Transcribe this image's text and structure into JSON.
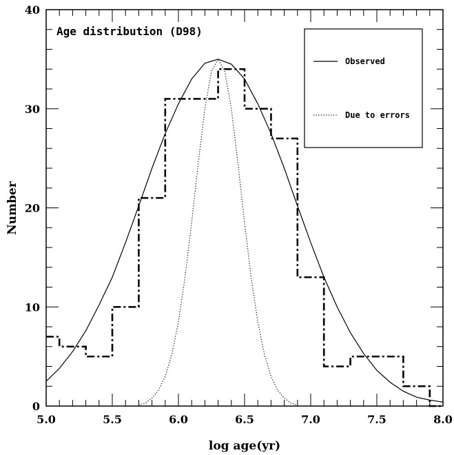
{
  "chart_data": {
    "type": "line",
    "title": "Age distribution (D98)",
    "xlabel": "log age(yr)",
    "ylabel": "Number",
    "xlim": [
      5.0,
      8.0
    ],
    "ylim": [
      0,
      40
    ],
    "x_ticks": [
      "5.0",
      "5.5",
      "6.0",
      "6.5",
      "7.0",
      "7.5",
      "8.0"
    ],
    "y_ticks": [
      "0",
      "10",
      "20",
      "30",
      "40"
    ],
    "x_tick_values": [
      5.0,
      5.5,
      6.0,
      6.5,
      7.0,
      7.5,
      8.0
    ],
    "y_tick_values": [
      0,
      10,
      20,
      30,
      40
    ],
    "grid": false,
    "legend_position": "top-right",
    "legend": [
      {
        "label": "Observed",
        "style": "solid"
      },
      {
        "label": "Due to errors",
        "style": "dotted"
      }
    ],
    "histogram": {
      "style": "dash-dot",
      "bin_edges": [
        5.0,
        5.1,
        5.3,
        5.5,
        5.7,
        5.9,
        6.3,
        6.5,
        6.7,
        6.9,
        7.1,
        7.3,
        7.7,
        7.9,
        8.0
      ],
      "counts": [
        7,
        6,
        5,
        10,
        21,
        31,
        34,
        30,
        27,
        13,
        4,
        5,
        2,
        0
      ]
    },
    "series": [
      {
        "name": "Observed",
        "style": "solid",
        "x": [
          5.0,
          5.1,
          5.2,
          5.3,
          5.4,
          5.5,
          5.6,
          5.7,
          5.8,
          5.9,
          6.0,
          6.1,
          6.2,
          6.3,
          6.4,
          6.5,
          6.6,
          6.7,
          6.8,
          6.9,
          7.0,
          7.1,
          7.2,
          7.3,
          7.4,
          7.5,
          7.6,
          7.7,
          7.8,
          7.9,
          8.0
        ],
        "y": [
          2.5,
          3.8,
          5.5,
          7.6,
          10.2,
          13.0,
          16.5,
          20.2,
          24.0,
          27.5,
          30.5,
          33.0,
          34.6,
          35.0,
          34.5,
          33.0,
          30.5,
          27.5,
          24.0,
          20.2,
          16.5,
          13.0,
          10.0,
          7.4,
          5.3,
          3.6,
          2.4,
          1.5,
          0.9,
          0.6,
          0.4
        ]
      },
      {
        "name": "Due to errors",
        "style": "dotted",
        "x": [
          5.7,
          5.75,
          5.8,
          5.85,
          5.9,
          5.95,
          6.0,
          6.05,
          6.1,
          6.15,
          6.2,
          6.25,
          6.3,
          6.35,
          6.4,
          6.45,
          6.5,
          6.55,
          6.6,
          6.65,
          6.7,
          6.75,
          6.8,
          6.85,
          6.9
        ],
        "y": [
          0.1,
          0.3,
          0.8,
          1.6,
          3.0,
          5.2,
          8.5,
          13.0,
          18.5,
          24.5,
          30.0,
          33.8,
          35.0,
          33.8,
          30.0,
          24.5,
          18.5,
          13.0,
          8.5,
          5.2,
          3.0,
          1.6,
          0.8,
          0.3,
          0.1
        ]
      }
    ]
  }
}
